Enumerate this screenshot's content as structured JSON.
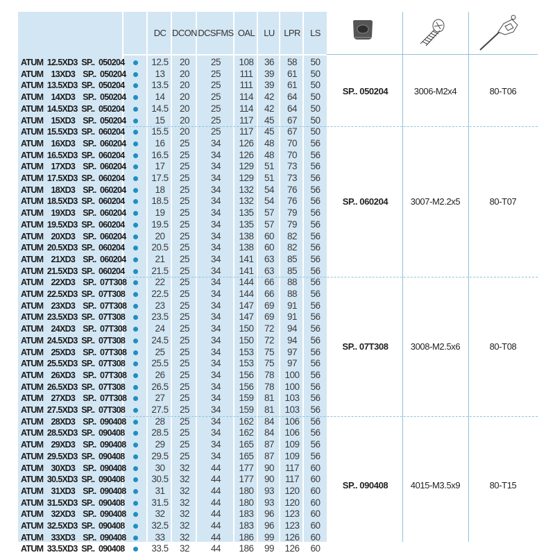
{
  "columns": [
    "DC",
    "DCON",
    "DCSFMS",
    "OAL",
    "LU",
    "LPR",
    "LS"
  ],
  "availability_color": "#1f8fc0",
  "header_icons": [
    "insert-icon",
    "screw-icon",
    "torx-key-icon"
  ],
  "rows": [
    {
      "name": "ATUM  12.5XD3  SP..  050204",
      "values": [
        "12.5",
        "20",
        "25",
        "108",
        "36",
        "58",
        "50"
      ]
    },
    {
      "name": "ATUM    13XD3    SP..  050204",
      "values": [
        "13",
        "20",
        "25",
        "111",
        "39",
        "61",
        "50"
      ]
    },
    {
      "name": "ATUM  13.5XD3  SP..  050204",
      "values": [
        "13.5",
        "20",
        "25",
        "111",
        "39",
        "61",
        "50"
      ]
    },
    {
      "name": "ATUM    14XD3    SP..  050204",
      "values": [
        "14",
        "20",
        "25",
        "114",
        "42",
        "64",
        "50"
      ]
    },
    {
      "name": "ATUM  14.5XD3  SP..  050204",
      "values": [
        "14.5",
        "20",
        "25",
        "114",
        "42",
        "64",
        "50"
      ]
    },
    {
      "name": "ATUM    15XD3    SP..  050204",
      "values": [
        "15",
        "20",
        "25",
        "117",
        "45",
        "67",
        "50"
      ]
    },
    {
      "name": "ATUM  15.5XD3  SP..  060204",
      "values": [
        "15.5",
        "20",
        "25",
        "117",
        "45",
        "67",
        "50"
      ]
    },
    {
      "name": "ATUM    16XD3    SP..  060204",
      "values": [
        "16",
        "25",
        "34",
        "126",
        "48",
        "70",
        "56"
      ]
    },
    {
      "name": "ATUM  16.5XD3  SP..  060204",
      "values": [
        "16.5",
        "25",
        "34",
        "126",
        "48",
        "70",
        "56"
      ]
    },
    {
      "name": "ATUM    17XD3    SP..  060204",
      "values": [
        "17",
        "25",
        "34",
        "129",
        "51",
        "73",
        "56"
      ]
    },
    {
      "name": "ATUM  17.5XD3  SP..  060204",
      "values": [
        "17.5",
        "25",
        "34",
        "129",
        "51",
        "73",
        "56"
      ]
    },
    {
      "name": "ATUM    18XD3    SP..  060204",
      "values": [
        "18",
        "25",
        "34",
        "132",
        "54",
        "76",
        "56"
      ]
    },
    {
      "name": "ATUM  18.5XD3  SP..  060204",
      "values": [
        "18.5",
        "25",
        "34",
        "132",
        "54",
        "76",
        "56"
      ]
    },
    {
      "name": "ATUM    19XD3    SP..  060204",
      "values": [
        "19",
        "25",
        "34",
        "135",
        "57",
        "79",
        "56"
      ]
    },
    {
      "name": "ATUM  19.5XD3  SP..  060204",
      "values": [
        "19.5",
        "25",
        "34",
        "135",
        "57",
        "79",
        "56"
      ]
    },
    {
      "name": "ATUM    20XD3    SP..  060204",
      "values": [
        "20",
        "25",
        "34",
        "138",
        "60",
        "82",
        "56"
      ]
    },
    {
      "name": "ATUM  20.5XD3  SP..  060204",
      "values": [
        "20.5",
        "25",
        "34",
        "138",
        "60",
        "82",
        "56"
      ]
    },
    {
      "name": "ATUM    21XD3    SP..  060204",
      "values": [
        "21",
        "25",
        "34",
        "141",
        "63",
        "85",
        "56"
      ]
    },
    {
      "name": "ATUM  21.5XD3  SP..  060204",
      "values": [
        "21.5",
        "25",
        "34",
        "141",
        "63",
        "85",
        "56"
      ]
    },
    {
      "name": "ATUM    22XD3    SP..  07T308",
      "values": [
        "22",
        "25",
        "34",
        "144",
        "66",
        "88",
        "56"
      ]
    },
    {
      "name": "ATUM  22.5XD3  SP..  07T308",
      "values": [
        "22.5",
        "25",
        "34",
        "144",
        "66",
        "88",
        "56"
      ]
    },
    {
      "name": "ATUM    23XD3    SP..  07T308",
      "values": [
        "23",
        "25",
        "34",
        "147",
        "69",
        "91",
        "56"
      ]
    },
    {
      "name": "ATUM  23.5XD3  SP..  07T308",
      "values": [
        "23.5",
        "25",
        "34",
        "147",
        "69",
        "91",
        "56"
      ]
    },
    {
      "name": "ATUM    24XD3    SP..  07T308",
      "values": [
        "24",
        "25",
        "34",
        "150",
        "72",
        "94",
        "56"
      ]
    },
    {
      "name": "ATUM  24.5XD3  SP..  07T308",
      "values": [
        "24.5",
        "25",
        "34",
        "150",
        "72",
        "94",
        "56"
      ]
    },
    {
      "name": "ATUM    25XD3    SP..  07T308",
      "values": [
        "25",
        "25",
        "34",
        "153",
        "75",
        "97",
        "56"
      ]
    },
    {
      "name": "ATUM  25.5XD3  SP..  07T308",
      "values": [
        "25.5",
        "25",
        "34",
        "153",
        "75",
        "97",
        "56"
      ]
    },
    {
      "name": "ATUM    26XD3    SP..  07T308",
      "values": [
        "26",
        "25",
        "34",
        "156",
        "78",
        "100",
        "56"
      ]
    },
    {
      "name": "ATUM  26.5XD3  SP..  07T308",
      "values": [
        "26.5",
        "25",
        "34",
        "156",
        "78",
        "100",
        "56"
      ]
    },
    {
      "name": "ATUM    27XD3    SP..  07T308",
      "values": [
        "27",
        "25",
        "34",
        "159",
        "81",
        "103",
        "56"
      ]
    },
    {
      "name": "ATUM  27.5XD3  SP..  07T308",
      "values": [
        "27.5",
        "25",
        "34",
        "159",
        "81",
        "103",
        "56"
      ]
    },
    {
      "name": "ATUM    28XD3    SP..  090408",
      "values": [
        "28",
        "25",
        "34",
        "162",
        "84",
        "106",
        "56"
      ]
    },
    {
      "name": "ATUM  28.5XD3  SP..  090408",
      "values": [
        "28.5",
        "25",
        "34",
        "162",
        "84",
        "106",
        "56"
      ]
    },
    {
      "name": "ATUM    29XD3    SP..  090408",
      "values": [
        "29",
        "25",
        "34",
        "165",
        "87",
        "109",
        "56"
      ]
    },
    {
      "name": "ATUM  29.5XD3  SP..  090408",
      "values": [
        "29.5",
        "25",
        "34",
        "165",
        "87",
        "109",
        "56"
      ]
    },
    {
      "name": "ATUM    30XD3    SP..  090408",
      "values": [
        "30",
        "32",
        "44",
        "177",
        "90",
        "117",
        "60"
      ]
    },
    {
      "name": "ATUM  30.5XD3  SP..  090408",
      "values": [
        "30.5",
        "32",
        "44",
        "177",
        "90",
        "117",
        "60"
      ]
    },
    {
      "name": "ATUM    31XD3    SP..  090408",
      "values": [
        "31",
        "32",
        "44",
        "180",
        "93",
        "120",
        "60"
      ]
    },
    {
      "name": "ATUM  31.5XD3  SP..  090408",
      "values": [
        "31.5",
        "32",
        "44",
        "180",
        "93",
        "120",
        "60"
      ]
    },
    {
      "name": "ATUM    32XD3    SP..  090408",
      "values": [
        "32",
        "32",
        "44",
        "183",
        "96",
        "123",
        "60"
      ]
    },
    {
      "name": "ATUM  32.5XD3  SP..  090408",
      "values": [
        "32.5",
        "32",
        "44",
        "183",
        "96",
        "123",
        "60"
      ]
    },
    {
      "name": "ATUM    33XD3    SP..  090408",
      "values": [
        "33",
        "32",
        "44",
        "186",
        "99",
        "126",
        "60"
      ]
    },
    {
      "name": "ATUM  33.5XD3  SP..  090408",
      "values": [
        "33.5",
        "32",
        "44",
        "186",
        "99",
        "126",
        "60"
      ]
    }
  ],
  "groups": [
    {
      "insert": "SP.. 050204",
      "screw": "3006-M2x4",
      "key": "80-T06"
    },
    {
      "insert": "SP.. 060204",
      "screw": "3007-M2.2x5",
      "key": "80-T07"
    },
    {
      "insert": "SP.. 07T308",
      "screw": "3008-M2.5x6",
      "key": "80-T08"
    },
    {
      "insert": "SP.. 090408",
      "screw": "4015-M3.5x9",
      "key": "80-T15"
    }
  ]
}
